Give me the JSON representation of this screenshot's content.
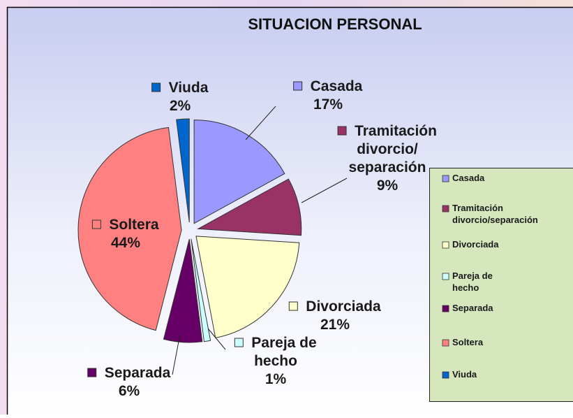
{
  "chart_data": {
    "type": "pie",
    "title": "SITUACION PERSONAL",
    "categories": [
      "Casada",
      "Tramitación divorcio/separación",
      "Divorciada",
      "Pareja de hecho",
      "Separada",
      "Soltera",
      "Viuda"
    ],
    "values": [
      17,
      9,
      21,
      1,
      6,
      44,
      2
    ],
    "value_labels": [
      "17%",
      "9%",
      "21%",
      "1%",
      "6%",
      "44%",
      "2%"
    ],
    "colors": [
      "#9999ff",
      "#993366",
      "#ffffcc",
      "#ccffff",
      "#660066",
      "#ff8080",
      "#0066cc"
    ],
    "legend": "right"
  }
}
